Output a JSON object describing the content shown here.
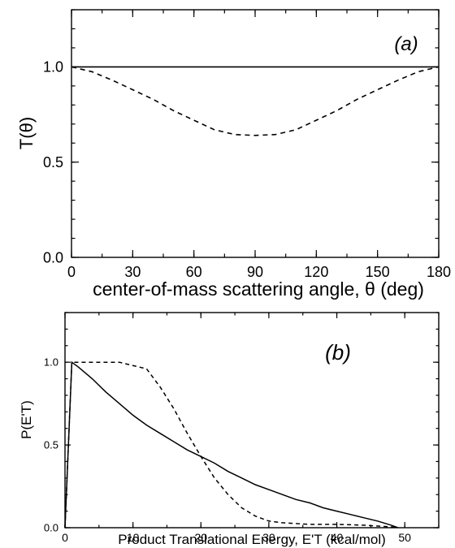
{
  "chart_data": [
    {
      "type": "line",
      "panel_label": "(a)",
      "xlabel": "center-of-mass scattering angle, θ (deg)",
      "ylabel": "T(θ)",
      "xlim": [
        0,
        180
      ],
      "ylim": [
        0,
        1.3
      ],
      "xticks": [
        0,
        30,
        60,
        90,
        120,
        150,
        180
      ],
      "yticks": [
        0.0,
        0.5,
        1.0
      ],
      "ytick_labels": [
        "0.0",
        "0.5",
        "1.0"
      ],
      "grid": false,
      "series": [
        {
          "style": "solid",
          "x": [
            0,
            180
          ],
          "y": [
            1.0,
            1.0
          ]
        },
        {
          "style": "dashed",
          "x": [
            0,
            10,
            20,
            30,
            40,
            50,
            60,
            70,
            80,
            90,
            100,
            110,
            120,
            130,
            140,
            150,
            160,
            170,
            180
          ],
          "y": [
            1.0,
            0.975,
            0.93,
            0.88,
            0.83,
            0.77,
            0.72,
            0.67,
            0.645,
            0.64,
            0.645,
            0.67,
            0.72,
            0.77,
            0.83,
            0.88,
            0.93,
            0.975,
            1.0
          ]
        }
      ]
    },
    {
      "type": "line",
      "panel_label": "(b)",
      "xlabel": "Product Translational Energy, E'T (kcal/mol)",
      "ylabel": "P(E'T)",
      "xlim": [
        0,
        55
      ],
      "ylim": [
        0,
        1.3
      ],
      "xticks": [
        0,
        10,
        20,
        30,
        40,
        50
      ],
      "yticks": [
        0.0,
        0.5,
        1.0
      ],
      "ytick_labels": [
        "0.0",
        "0.5",
        "1.0"
      ],
      "grid": false,
      "series": [
        {
          "style": "solid",
          "x": [
            0,
            1,
            2,
            4,
            6,
            8,
            10,
            12,
            14,
            16,
            18,
            20,
            22,
            24,
            26,
            28,
            30,
            32,
            34,
            36,
            38,
            40,
            42,
            44,
            46,
            48,
            49
          ],
          "y": [
            0,
            1.0,
            0.97,
            0.9,
            0.82,
            0.75,
            0.68,
            0.62,
            0.57,
            0.52,
            0.47,
            0.43,
            0.39,
            0.34,
            0.3,
            0.26,
            0.23,
            0.2,
            0.17,
            0.15,
            0.12,
            0.1,
            0.08,
            0.06,
            0.04,
            0.015,
            0
          ]
        },
        {
          "style": "dashed",
          "x": [
            0,
            1,
            2,
            4,
            8,
            12,
            14,
            16,
            18,
            20,
            22,
            24,
            26,
            28,
            30,
            32,
            36,
            40,
            44,
            48,
            49
          ],
          "y": [
            0,
            1.0,
            1.0,
            1.0,
            1.0,
            0.96,
            0.85,
            0.72,
            0.57,
            0.43,
            0.3,
            0.2,
            0.12,
            0.07,
            0.04,
            0.03,
            0.02,
            0.02,
            0.015,
            0.005,
            0
          ]
        }
      ]
    }
  ]
}
